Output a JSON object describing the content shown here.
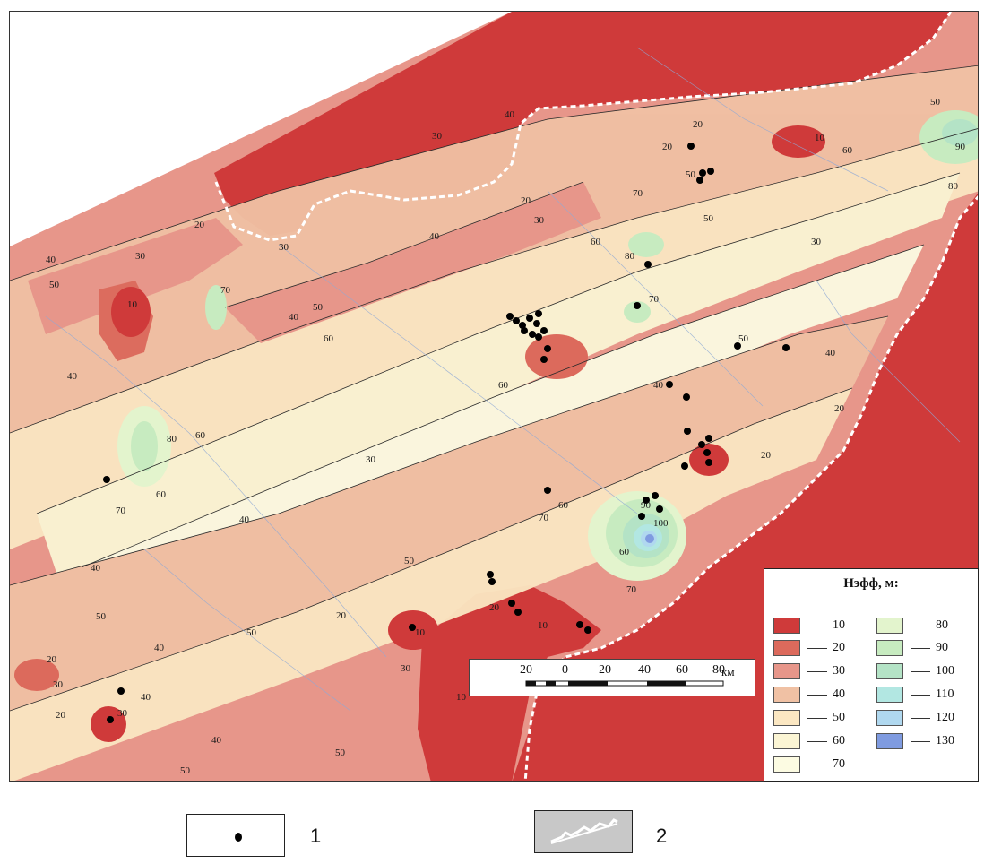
{
  "legend": {
    "title": "Нэфф, м:",
    "items": [
      {
        "value": "10",
        "color": "#cf3a3a"
      },
      {
        "value": "20",
        "color": "#dc6a5c"
      },
      {
        "value": "30",
        "color": "#e7968a"
      },
      {
        "value": "40",
        "color": "#f0c1a4"
      },
      {
        "value": "50",
        "color": "#fbe7c2"
      },
      {
        "value": "60",
        "color": "#fbf5d4"
      },
      {
        "value": "70",
        "color": "#fcfbe2"
      },
      {
        "value": "80",
        "color": "#e3f4cd"
      },
      {
        "value": "90",
        "color": "#c7ebc0"
      },
      {
        "value": "100",
        "color": "#b4e3c6"
      },
      {
        "value": "110",
        "color": "#b2e7e2"
      },
      {
        "value": "120",
        "color": "#b0d8ef"
      },
      {
        "value": "130",
        "color": "#7f9be0"
      }
    ]
  },
  "scale": {
    "ticks": [
      "20",
      "0",
      "20",
      "40",
      "60",
      "80"
    ],
    "unit": "км"
  },
  "map_labels": [
    "10",
    "20",
    "30",
    "40",
    "50",
    "60",
    "70",
    "80",
    "90",
    "100"
  ],
  "key": {
    "item1_label": "1",
    "item2_label": "2"
  }
}
